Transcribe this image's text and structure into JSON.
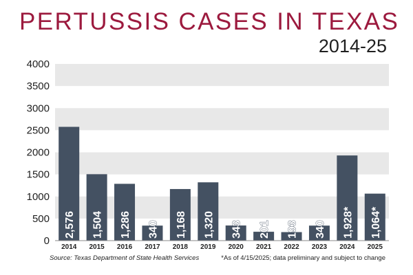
{
  "title": "PERTUSSIS CASES IN TEXAS",
  "subtitle": "2014-25",
  "source": "Source: Texas Department of State Health Services",
  "footnote": "*As of 4/15/2025; data preliminary and subject to change",
  "colors": {
    "bar": "#445162",
    "title": "#9c1a3e",
    "band": "#e8e8e8",
    "label_light": "#ffffff"
  },
  "chart_data": {
    "type": "bar",
    "title": "PERTUSSIS CASES IN TEXAS",
    "subtitle": "2014-25",
    "categories": [
      "2014",
      "2015",
      "2016",
      "2017",
      "2018",
      "2019",
      "2020",
      "2021",
      "2022",
      "2023",
      "2024",
      "2025"
    ],
    "values": [
      2576,
      1504,
      1286,
      340,
      1168,
      1320,
      343,
      201,
      193,
      340,
      1928,
      1064
    ],
    "data_labels": [
      "2,576",
      "1,504",
      "1,286",
      "340",
      "1,168",
      "1,320",
      "343",
      "201",
      "193",
      "340",
      "1,928*",
      "1,064*"
    ],
    "ylim": [
      0,
      4000
    ],
    "yticks": [
      0,
      500,
      1000,
      1500,
      2000,
      2500,
      3000,
      3500,
      4000
    ],
    "ytick_labels": [
      "0",
      "500",
      "1000",
      "1500",
      "2000",
      "2500",
      "3000",
      "3500",
      "4000"
    ],
    "xlabel": "",
    "ylabel": "",
    "grid": "alternating horizontal bands",
    "legend": "none"
  }
}
